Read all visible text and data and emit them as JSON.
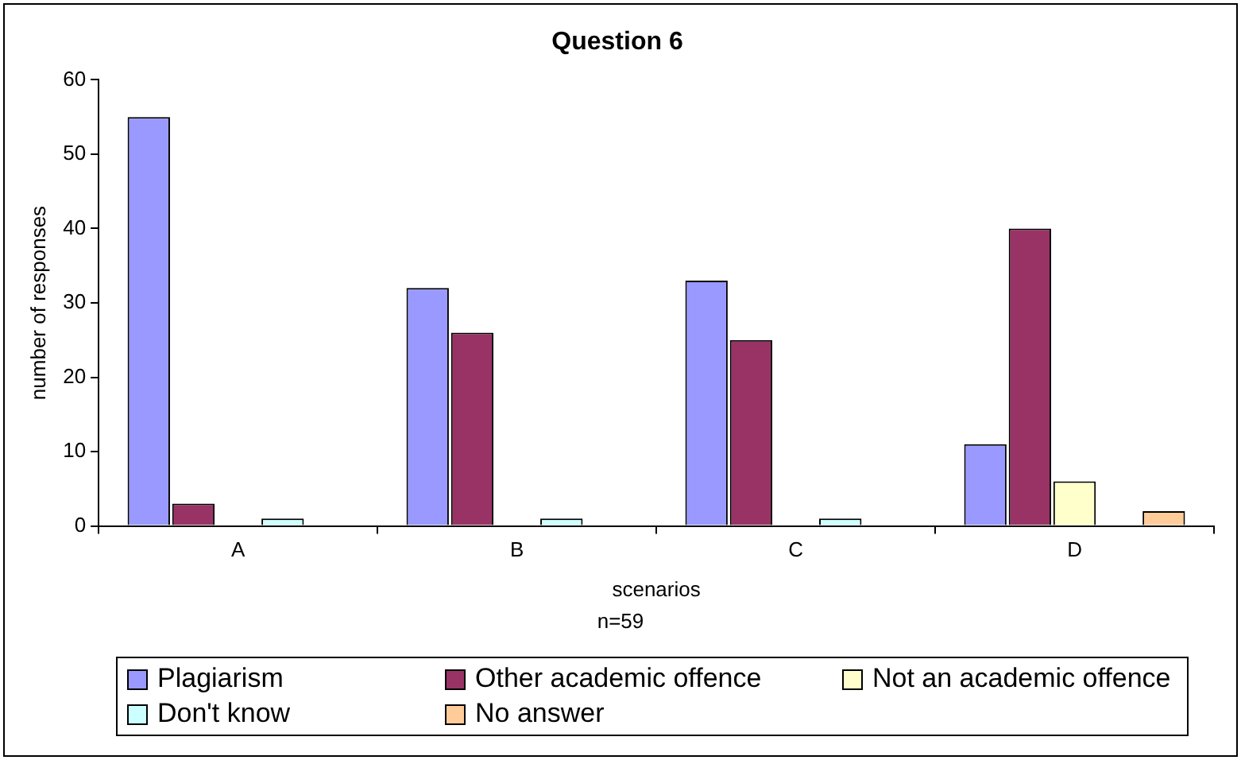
{
  "chart_data": {
    "type": "bar",
    "title": "Question 6",
    "xlabel": "scenarios",
    "ylabel": "number of responses",
    "annotations": [
      "n=59"
    ],
    "categories": [
      "A",
      "B",
      "C",
      "D"
    ],
    "series": [
      {
        "name": "Plagiarism",
        "color": "#9999ff",
        "values": [
          55,
          32,
          33,
          11
        ]
      },
      {
        "name": "Other academic offence",
        "color": "#993366",
        "values": [
          3,
          26,
          25,
          40
        ]
      },
      {
        "name": "Not an academic offence",
        "color": "#ffffcc",
        "values": [
          0,
          0,
          0,
          6
        ]
      },
      {
        "name": "Don't know",
        "color": "#ccffff",
        "values": [
          1,
          1,
          1,
          0
        ]
      },
      {
        "name": "No answer",
        "color": "#ffcc99",
        "values": [
          0,
          0,
          0,
          2
        ]
      }
    ],
    "ylim": [
      0,
      60
    ],
    "yticks": [
      0,
      10,
      20,
      30,
      40,
      50,
      60
    ],
    "grid": false,
    "legend": "bottom"
  }
}
